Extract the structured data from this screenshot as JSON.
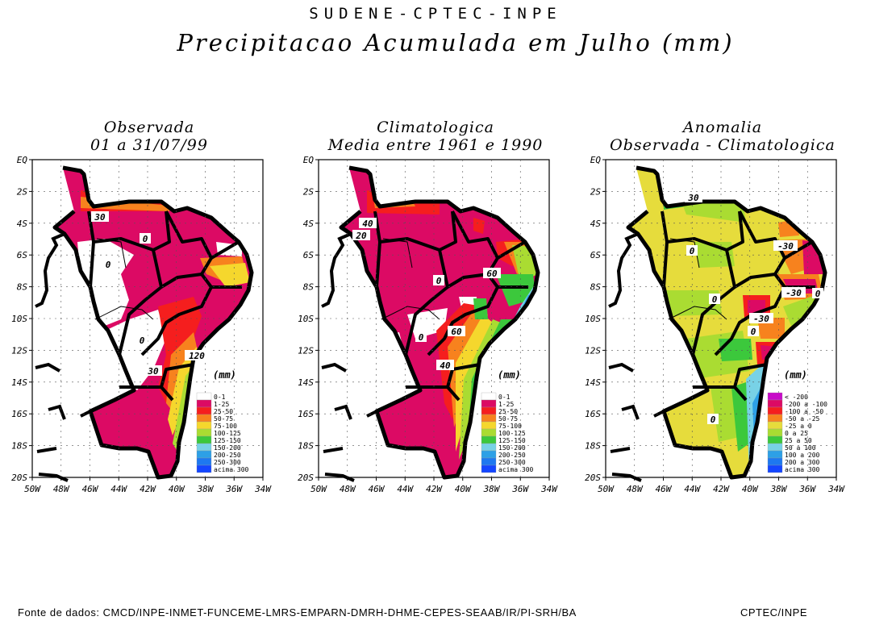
{
  "header": {
    "agency": "SUDENE-CPTEC-INPE",
    "title": "Precipitacao Acumulada em Julho (mm)"
  },
  "panels": [
    {
      "line1": "Observada",
      "line2": "01 a 31/07/99"
    },
    {
      "line1": "Climatologica",
      "line2": "Media entre 1961 e 1990"
    },
    {
      "line1": "Anomalia",
      "line2": "Observada - Climatologica"
    }
  ],
  "axes": {
    "y_ticks": [
      "EQ",
      "2S",
      "4S",
      "6S",
      "8S",
      "10S",
      "12S",
      "14S",
      "16S",
      "18S",
      "20S"
    ],
    "x_ticks": [
      "50W",
      "48W",
      "46W",
      "44W",
      "42W",
      "40W",
      "38W",
      "36W",
      "34W"
    ],
    "lat_range": [
      0,
      -21
    ],
    "lon_range": [
      -50,
      -34
    ]
  },
  "legend_unit": "(mm)",
  "legend_precip": [
    {
      "label": "0-1",
      "color": "#ffffff"
    },
    {
      "label": "1-25",
      "color": "#dc0a64"
    },
    {
      "label": "25-50",
      "color": "#f51e1e"
    },
    {
      "label": "50-75",
      "color": "#f7821e"
    },
    {
      "label": "75-100",
      "color": "#f5d72d"
    },
    {
      "label": "100-125",
      "color": "#aadc32"
    },
    {
      "label": "125-150",
      "color": "#3cc83c"
    },
    {
      "label": "150-200",
      "color": "#78d2e6"
    },
    {
      "label": "200-250",
      "color": "#2da0e6"
    },
    {
      "label": "250-300",
      "color": "#1e78f0"
    },
    {
      "label": "acima 300",
      "color": "#1446ff"
    }
  ],
  "legend_anom": [
    {
      "label": "< -200",
      "color": "#c80ac8"
    },
    {
      "label": "-200 a -100",
      "color": "#dc0a64"
    },
    {
      "label": "-100 a -50",
      "color": "#f51e1e"
    },
    {
      "label": "-50 a -25",
      "color": "#f7821e"
    },
    {
      "label": "-25 a 0",
      "color": "#e6dc3c"
    },
    {
      "label": "0 a 25",
      "color": "#aadc32"
    },
    {
      "label": "25 a 50",
      "color": "#3cc83c"
    },
    {
      "label": "50 a 100",
      "color": "#78d2e6"
    },
    {
      "label": "100 a 200",
      "color": "#2da0e6"
    },
    {
      "label": "200 a 300",
      "color": "#1e78f0"
    },
    {
      "label": "acima 300",
      "color": "#1446ff"
    }
  ],
  "contour_labels": {
    "observed": [
      "30",
      "0",
      "0",
      "0",
      "120",
      "30"
    ],
    "climatology": [
      "40",
      "20",
      "60",
      "0",
      "60",
      "0",
      "40"
    ],
    "anomaly": [
      "30",
      "0",
      "-30",
      "0",
      "-30",
      "0",
      "-30",
      "0",
      "0"
    ]
  },
  "footer": {
    "source": "Fonte de dados: CMCD/INPE-INMET-FUNCEME-LMRS-EMPARN-DMRH-DHME-CEPES-SEAAB/IR/PI-SRH/BA",
    "credit": "CPTEC/INPE"
  }
}
